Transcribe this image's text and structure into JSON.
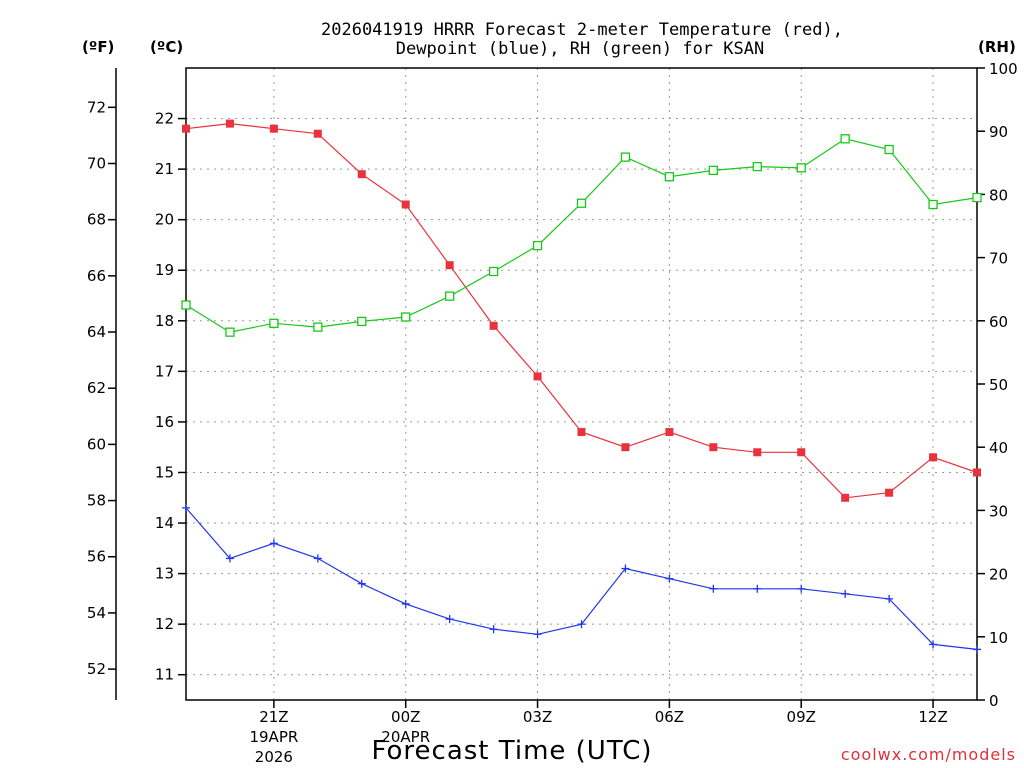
{
  "chart_data": {
    "type": "line",
    "title": "2026041919 HRRR Forecast 2-meter Temperature (red),",
    "subtitle": "Dewpoint (blue), RH (green) for KSAN",
    "xlabel": "Forecast Time (UTC)",
    "credit": "coolwx.com/models",
    "units": {
      "fahrenheit": "(ºF)",
      "celsius": "(ºC)",
      "rh": "(RH)"
    },
    "x_hours": [
      19,
      20,
      21,
      22,
      23,
      24,
      25,
      26,
      27,
      28,
      29,
      30,
      31,
      32,
      33,
      34,
      35,
      36,
      37
    ],
    "xlim": [
      19,
      37
    ],
    "x_ticks": [
      {
        "hour": 21,
        "label": "21Z",
        "date": "19APR",
        "year": "2026"
      },
      {
        "hour": 24,
        "label": "00Z",
        "date": "20APR",
        "year": ""
      },
      {
        "hour": 27,
        "label": "03Z",
        "date": "",
        "year": ""
      },
      {
        "hour": 30,
        "label": "06Z",
        "date": "",
        "year": ""
      },
      {
        "hour": 33,
        "label": "09Z",
        "date": "",
        "year": ""
      },
      {
        "hour": 36,
        "label": "12Z",
        "date": "",
        "year": ""
      }
    ],
    "celsius_axis": {
      "ylim": [
        10.5,
        23
      ],
      "ticks": [
        11,
        12,
        13,
        14,
        15,
        16,
        17,
        18,
        19,
        20,
        21,
        22
      ]
    },
    "fahrenheit_axis": {
      "ticks": [
        52,
        54,
        56,
        58,
        60,
        62,
        64,
        66,
        68,
        70,
        72
      ]
    },
    "rh_axis": {
      "ylim": [
        0,
        100
      ],
      "ticks": [
        0,
        10,
        20,
        30,
        40,
        50,
        60,
        70,
        80,
        90,
        100
      ]
    },
    "series": [
      {
        "name": "Temperature",
        "axis": "celsius",
        "color": "#e8323c",
        "marker": "filled-square",
        "values": [
          21.8,
          21.9,
          21.8,
          21.7,
          20.9,
          20.3,
          19.1,
          17.9,
          16.9,
          15.8,
          15.5,
          15.8,
          15.5,
          15.4,
          15.4,
          14.5,
          14.6,
          15.3,
          15.0
        ]
      },
      {
        "name": "Dewpoint",
        "axis": "celsius",
        "color": "#2036e8",
        "marker": "plus",
        "values": [
          14.3,
          13.3,
          13.6,
          13.3,
          12.8,
          12.4,
          12.1,
          11.9,
          11.8,
          12.0,
          13.1,
          12.9,
          12.7,
          12.7,
          12.7,
          12.6,
          12.5,
          11.6,
          11.5
        ]
      },
      {
        "name": "RH",
        "axis": "rh",
        "color": "#18c818",
        "marker": "open-square",
        "values": [
          62.5,
          58.2,
          59.6,
          59.0,
          59.9,
          60.6,
          63.9,
          67.8,
          71.9,
          78.6,
          85.9,
          82.8,
          83.8,
          84.4,
          84.2,
          88.8,
          87.1,
          78.4,
          79.5
        ]
      }
    ]
  }
}
